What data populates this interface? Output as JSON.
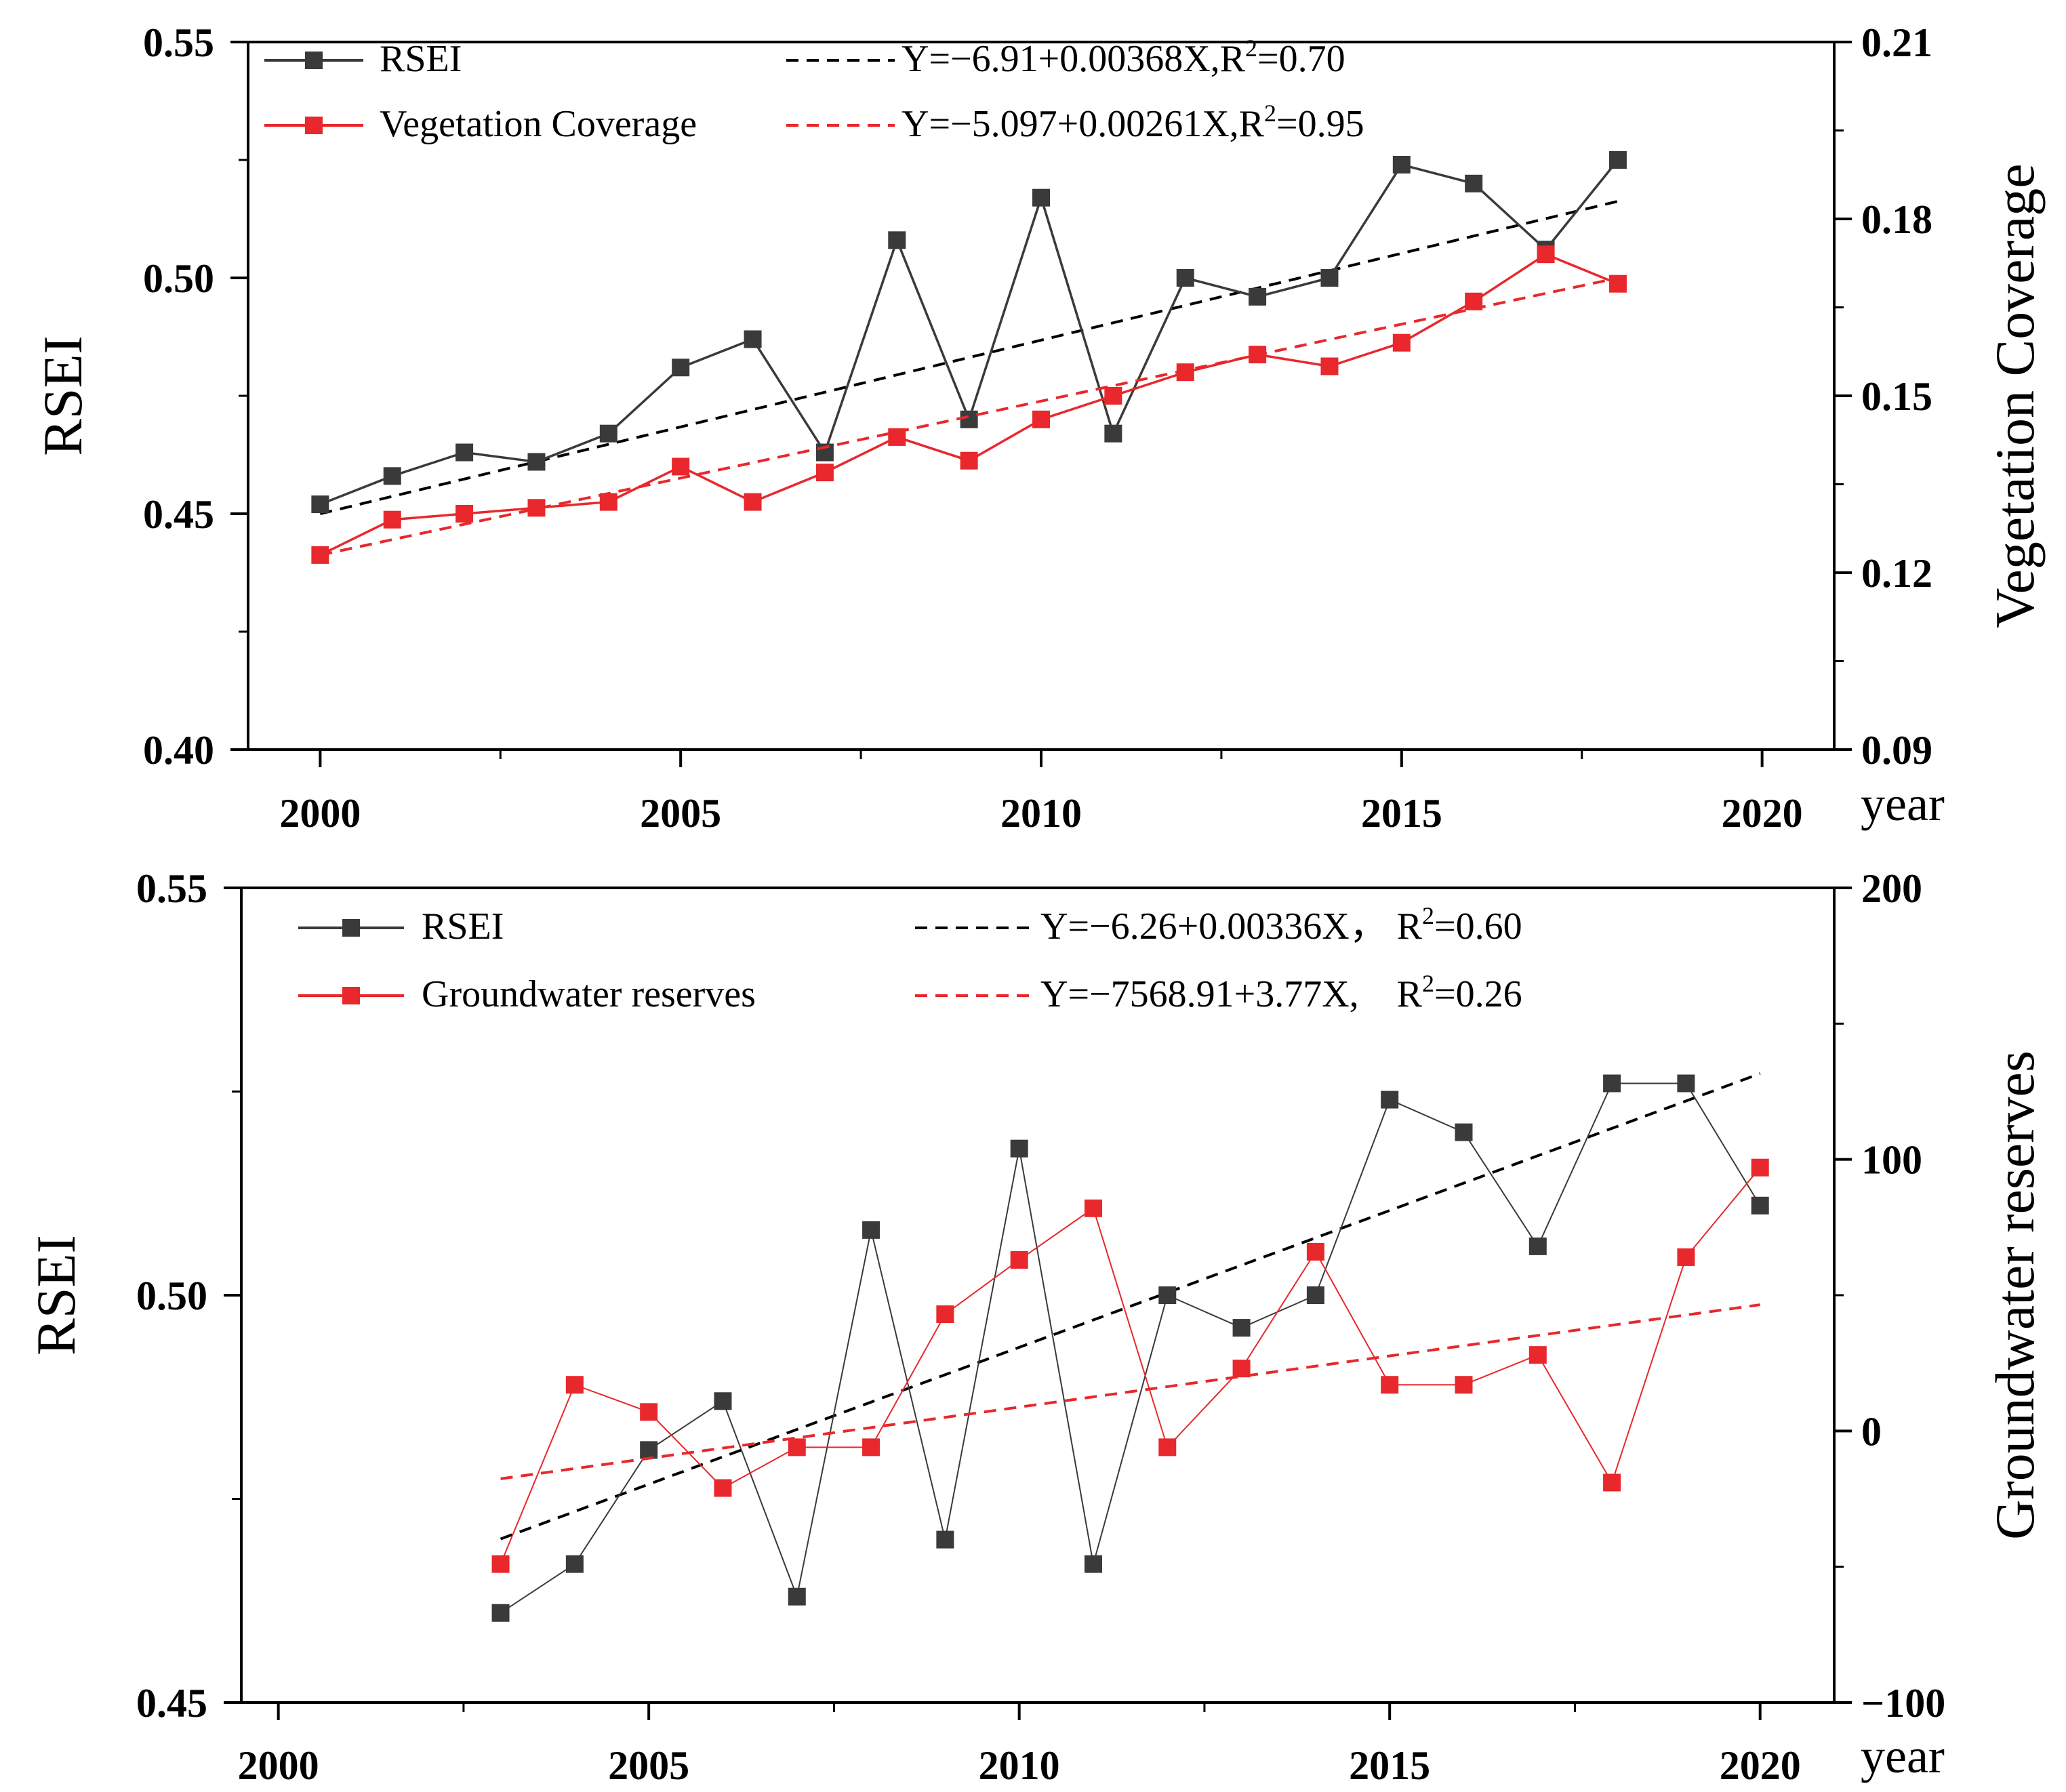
{
  "chart_data": [
    {
      "type": "line",
      "panel": "top",
      "x_ticks": [
        2000,
        2005,
        2010,
        2015,
        2020
      ],
      "x_unit": "year",
      "xlim": [
        1999,
        2021
      ],
      "ylabel_left": "RSEI",
      "ylim_left": [
        0.4,
        0.55
      ],
      "yticks_left": [
        "0.40",
        "0.45",
        "0.50",
        "0.55"
      ],
      "ylabel_right": "Vegetation Coverage",
      "ylim_right": [
        0.09,
        0.21
      ],
      "yticks_right": [
        "0.09",
        "0.12",
        "0.15",
        "0.18",
        "0.21"
      ],
      "legend": [
        {
          "label": "RSEI",
          "equation": "Y=−6.91+0.00368X,R",
          "r2": "=0.70"
        },
        {
          "label": "Vegetation Coverage",
          "equation": "Y=−5.097+0.00261X,R",
          "r2": "=0.95"
        }
      ],
      "series": [
        {
          "name": "RSEI",
          "axis": "left",
          "color": "#3a3a3a",
          "x": [
            2000,
            2001,
            2002,
            2003,
            2004,
            2005,
            2006,
            2007,
            2008,
            2009,
            2010,
            2011,
            2012,
            2013,
            2014,
            2015,
            2016,
            2017,
            2018
          ],
          "values": [
            0.452,
            0.458,
            0.463,
            0.461,
            0.467,
            0.481,
            0.487,
            0.463,
            0.508,
            0.47,
            0.517,
            0.467,
            0.5,
            0.496,
            0.5,
            0.524,
            0.52,
            0.506,
            0.525
          ],
          "trend": {
            "intercept": -6.91,
            "slope": 0.00368,
            "x_range": [
              2000,
              2018
            ]
          }
        },
        {
          "name": "Vegetation Coverage",
          "axis": "right",
          "color": "#e8282c",
          "x": [
            2000,
            2001,
            2002,
            2003,
            2004,
            2005,
            2006,
            2007,
            2008,
            2009,
            2010,
            2011,
            2012,
            2013,
            2014,
            2015,
            2016,
            2017,
            2018
          ],
          "values": [
            0.123,
            0.129,
            0.13,
            0.131,
            0.132,
            0.138,
            0.132,
            0.137,
            0.143,
            0.139,
            0.146,
            0.15,
            0.154,
            0.157,
            0.155,
            0.159,
            0.166,
            0.174,
            0.169
          ],
          "trend": {
            "intercept": -5.097,
            "slope": 0.00261,
            "x_range": [
              2000,
              2018
            ]
          }
        }
      ]
    },
    {
      "type": "line",
      "panel": "bottom",
      "x_ticks": [
        2000,
        2005,
        2010,
        2015,
        2020
      ],
      "x_unit": "year",
      "xlim": [
        1999.5,
        2021
      ],
      "ylabel_left": "RSEI",
      "ylim_left": [
        0.45,
        0.55
      ],
      "yticks_left": [
        "0.45",
        "0.50",
        "0.55"
      ],
      "ylabel_right": "Groundwater reserves",
      "ylim_right": [
        -100,
        200
      ],
      "yticks_right": [
        "−100",
        "0",
        "100",
        "200"
      ],
      "legend": [
        {
          "label": "RSEI",
          "equation": "Y=−6.26+0.00336X， R",
          "r2": "=0.60"
        },
        {
          "label": "Groundwater reserves",
          "equation": "Y=−7568.91+3.77X, R",
          "r2": "=0.26"
        }
      ],
      "series": [
        {
          "name": "RSEI",
          "axis": "left",
          "color": "#3a3a3a",
          "x": [
            2003,
            2004,
            2005,
            2006,
            2007,
            2008,
            2009,
            2010,
            2011,
            2012,
            2013,
            2014,
            2015,
            2016,
            2017,
            2018,
            2019,
            2020
          ],
          "values": [
            0.461,
            0.467,
            0.481,
            0.487,
            0.463,
            0.508,
            0.47,
            0.518,
            0.467,
            0.5,
            0.496,
            0.5,
            0.524,
            0.52,
            0.506,
            0.526,
            0.526,
            0.511
          ],
          "trend": {
            "intercept": -6.26,
            "slope": 0.00336,
            "x_range": [
              2003,
              2020
            ]
          }
        },
        {
          "name": "Groundwater reserves",
          "axis": "right",
          "color": "#e8282c",
          "x": [
            2003,
            2004,
            2005,
            2006,
            2007,
            2008,
            2009,
            2010,
            2011,
            2012,
            2013,
            2014,
            2015,
            2016,
            2017,
            2018,
            2019,
            2020
          ],
          "values": [
            -49,
            17,
            7,
            -21,
            -6,
            -6,
            43,
            63,
            82,
            -6,
            23,
            66,
            17,
            17,
            28,
            -19,
            64,
            97
          ],
          "trend": {
            "intercept": -7568.91,
            "slope": 3.77,
            "x_range": [
              2003,
              2020
            ]
          }
        }
      ]
    }
  ]
}
